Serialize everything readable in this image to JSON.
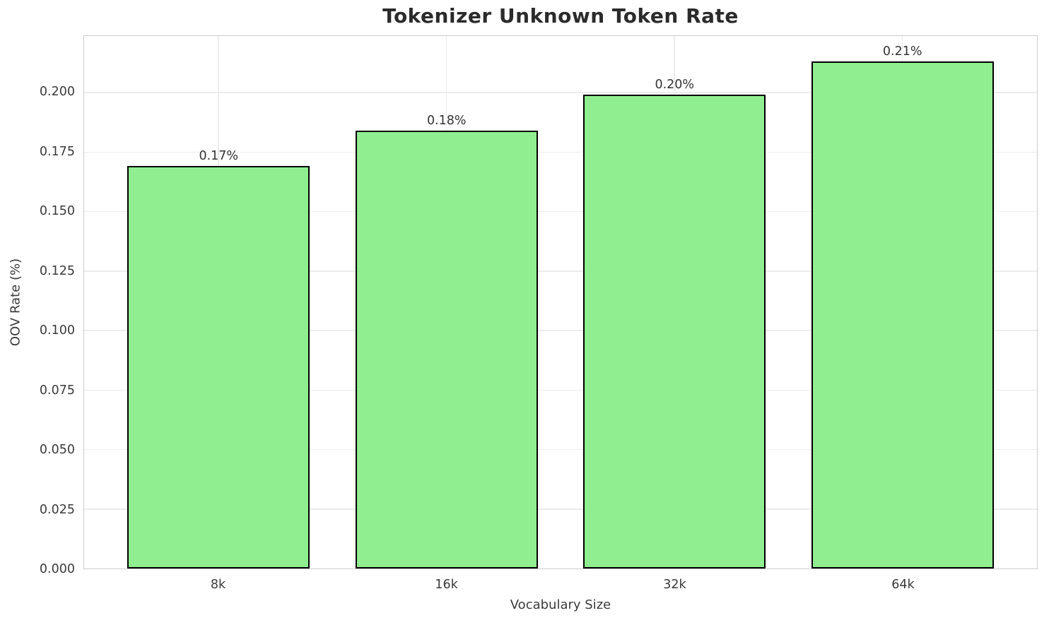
{
  "chart_data": {
    "type": "bar",
    "title": "Tokenizer Unknown Token Rate",
    "xlabel": "Vocabulary Size",
    "ylabel": "OOV Rate (%)",
    "categories": [
      "8k",
      "16k",
      "32k",
      "64k"
    ],
    "values": [
      0.169,
      0.184,
      0.199,
      0.213
    ],
    "bar_labels": [
      "0.17%",
      "0.18%",
      "0.20%",
      "0.21%"
    ],
    "ylim": [
      0,
      0.2237
    ],
    "ytick_labels": [
      "0.000",
      "0.025",
      "0.050",
      "0.075",
      "0.100",
      "0.125",
      "0.150",
      "0.175",
      "0.200"
    ],
    "grid": true,
    "legend": "none",
    "bar_color": "#90EE90",
    "bar_edge_color": "#000000",
    "grid_color": "#ececec",
    "spine_color": "#cccccc",
    "text_color": "#3a3a3a",
    "title_color": "#2b2b2b",
    "bar_width_fraction": 0.8
  }
}
